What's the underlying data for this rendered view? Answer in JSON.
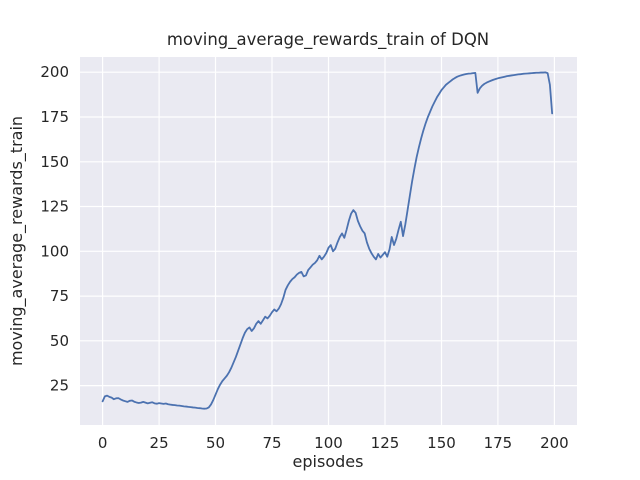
{
  "chart_data": {
    "type": "line",
    "title": "moving_average_rewards_train of DQN",
    "xlabel": "episodes",
    "ylabel": "moving_average_rewards_train",
    "x_is_index": true,
    "x_range": [
      0,
      199
    ],
    "xlim": [
      -10,
      210
    ],
    "ylim": [
      3,
      208.5
    ],
    "xticks": [
      0,
      25,
      50,
      75,
      100,
      125,
      150,
      175,
      200
    ],
    "yticks": [
      25,
      50,
      75,
      100,
      125,
      150,
      175,
      200
    ],
    "grid": true,
    "legend": "none",
    "series": [
      {
        "name": "moving_average_rewards_train",
        "values": [
          16.2,
          19.0,
          19.4,
          18.7,
          18.3,
          17.4,
          17.9,
          18.0,
          17.3,
          16.7,
          16.3,
          15.9,
          16.5,
          16.7,
          16.0,
          15.6,
          15.3,
          15.5,
          15.9,
          15.5,
          15.1,
          15.4,
          15.7,
          15.1,
          14.9,
          15.2,
          15.0,
          14.8,
          15.0,
          14.6,
          14.4,
          14.2,
          14.1,
          13.9,
          13.8,
          13.6,
          13.4,
          13.3,
          13.1,
          13.0,
          12.8,
          12.7,
          12.5,
          12.4,
          12.2,
          12.1,
          12.2,
          12.8,
          14.5,
          17.0,
          20.0,
          23.0,
          25.5,
          27.5,
          29.0,
          30.5,
          32.5,
          35.0,
          38.0,
          41.0,
          44.5,
          48.0,
          51.5,
          54.5,
          56.5,
          57.5,
          55.5,
          57.0,
          59.5,
          61.0,
          59.5,
          61.5,
          63.5,
          62.5,
          64.0,
          66.0,
          67.5,
          66.5,
          68.0,
          70.5,
          74.0,
          78.5,
          81.0,
          83.0,
          84.5,
          85.5,
          87.0,
          88.0,
          88.5,
          86.0,
          86.5,
          89.5,
          91.0,
          92.5,
          93.5,
          95.0,
          97.5,
          95.5,
          97.0,
          99.0,
          102.0,
          103.5,
          100.0,
          101.5,
          105.0,
          108.0,
          110.0,
          107.5,
          112.0,
          117.0,
          121.0,
          123.0,
          121.5,
          117.0,
          114.0,
          111.5,
          110.0,
          105.0,
          101.5,
          99.0,
          97.0,
          95.5,
          98.5,
          96.5,
          98.0,
          99.5,
          97.0,
          101.0,
          108.0,
          103.5,
          107.0,
          112.0,
          116.5,
          108.5,
          115.0,
          123.0,
          131.0,
          139.0,
          146.0,
          152.5,
          158.0,
          163.0,
          167.5,
          171.5,
          175.0,
          178.0,
          181.0,
          183.5,
          186.0,
          188.0,
          190.0,
          191.5,
          193.0,
          194.0,
          195.0,
          196.0,
          196.8,
          197.5,
          198.0,
          198.4,
          198.7,
          199.0,
          199.2,
          199.3,
          199.5,
          199.6,
          188.5,
          191.0,
          192.5,
          193.5,
          194.2,
          194.8,
          195.3,
          195.8,
          196.2,
          196.6,
          196.9,
          197.2,
          197.5,
          197.8,
          198.0,
          198.2,
          198.4,
          198.6,
          198.8,
          198.9,
          199.1,
          199.2,
          199.3,
          199.4,
          199.5,
          199.6,
          199.7,
          199.7,
          199.8,
          199.8,
          199.9,
          199.5,
          193.0,
          177.0
        ]
      }
    ],
    "colors": {
      "line": "#4c72b0",
      "plot_background": "#eaeaf2",
      "grid": "#ffffff",
      "text": "#262626",
      "figure_background": "#ffffff"
    }
  }
}
